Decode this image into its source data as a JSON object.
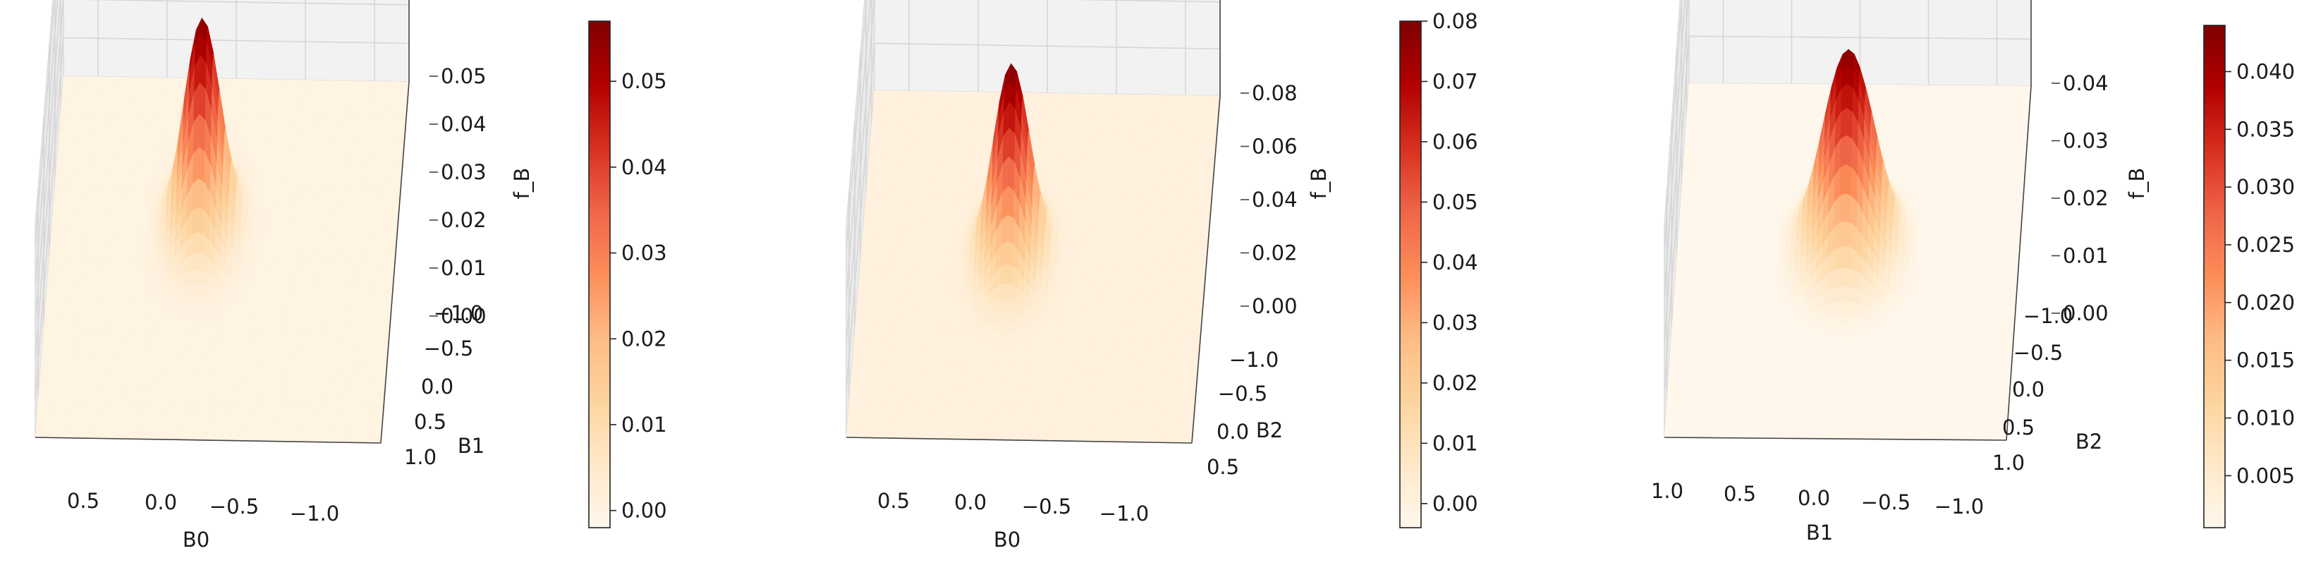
{
  "chart_data": [
    {
      "type": "surface",
      "title": "",
      "xlabel": "B0",
      "ylabel": "B1",
      "zlabel": "f_B",
      "x_ticks": [
        "0.5",
        "0.0",
        "−0.5",
        "−1.0"
      ],
      "y_ticks": [
        "−1.0",
        "−0.5",
        "0.0",
        "0.5",
        "1.0"
      ],
      "z_ticks": [
        "0.00",
        "0.01",
        "0.02",
        "0.03",
        "0.04",
        "0.05"
      ],
      "xlim": [
        1.0,
        -1.3
      ],
      "ylim": [
        -1.3,
        1.0
      ],
      "zlim": [
        0,
        0.057
      ],
      "peak": {
        "x": 0.0,
        "y": -0.35,
        "value": 0.056
      },
      "spread": {
        "x": 0.12,
        "y": 0.18
      },
      "colorbar": {
        "cmap": "OrRd",
        "range": [
          -0.002,
          0.057
        ],
        "ticks": [
          "0.00",
          "0.01",
          "0.02",
          "0.03",
          "0.04",
          "0.05"
        ]
      },
      "grid": true
    },
    {
      "type": "surface",
      "title": "",
      "xlabel": "B0",
      "ylabel": "B2",
      "zlabel": "f_B",
      "x_ticks": [
        "0.5",
        "0.0",
        "−0.5",
        "−1.0"
      ],
      "y_ticks": [
        "−1.0",
        "−0.5",
        "0.0",
        "0.5"
      ],
      "z_ticks": [
        "0.00",
        "0.02",
        "0.04",
        "0.06",
        "0.08"
      ],
      "xlim": [
        1.0,
        -1.3
      ],
      "ylim": [
        -1.3,
        0.8
      ],
      "zlim": [
        0,
        0.088
      ],
      "peak": {
        "x": 0.0,
        "y": -0.3,
        "value": 0.08
      },
      "spread": {
        "x": 0.12,
        "y": 0.17
      },
      "colorbar": {
        "cmap": "OrRd",
        "range": [
          -0.004,
          0.08
        ],
        "ticks": [
          "0.00",
          "0.01",
          "0.02",
          "0.03",
          "0.04",
          "0.05",
          "0.06",
          "0.07",
          "0.08"
        ]
      },
      "grid": true
    },
    {
      "type": "surface",
      "title": "",
      "xlabel": "B1",
      "ylabel": "B2",
      "zlabel": "f_B",
      "x_ticks": [
        "1.0",
        "0.5",
        "0.0",
        "−0.5",
        "−1.0"
      ],
      "y_ticks": [
        "−1.0",
        "−0.5",
        "0.0",
        "0.5",
        "1.0"
      ],
      "z_ticks": [
        "0.00",
        "0.01",
        "0.02",
        "0.03",
        "0.04"
      ],
      "xlim": [
        1.3,
        -1.3
      ],
      "ylim": [
        -1.3,
        1.0
      ],
      "zlim": [
        0,
        0.045
      ],
      "peak": {
        "x": 0.0,
        "y": -0.2,
        "value": 0.043
      },
      "spread": {
        "x": 0.2,
        "y": 0.2
      },
      "colorbar": {
        "cmap": "OrRd",
        "range": [
          0.0005,
          0.044
        ],
        "ticks": [
          "0.005",
          "0.010",
          "0.015",
          "0.020",
          "0.025",
          "0.030",
          "0.035",
          "0.040"
        ]
      },
      "grid": true
    }
  ]
}
